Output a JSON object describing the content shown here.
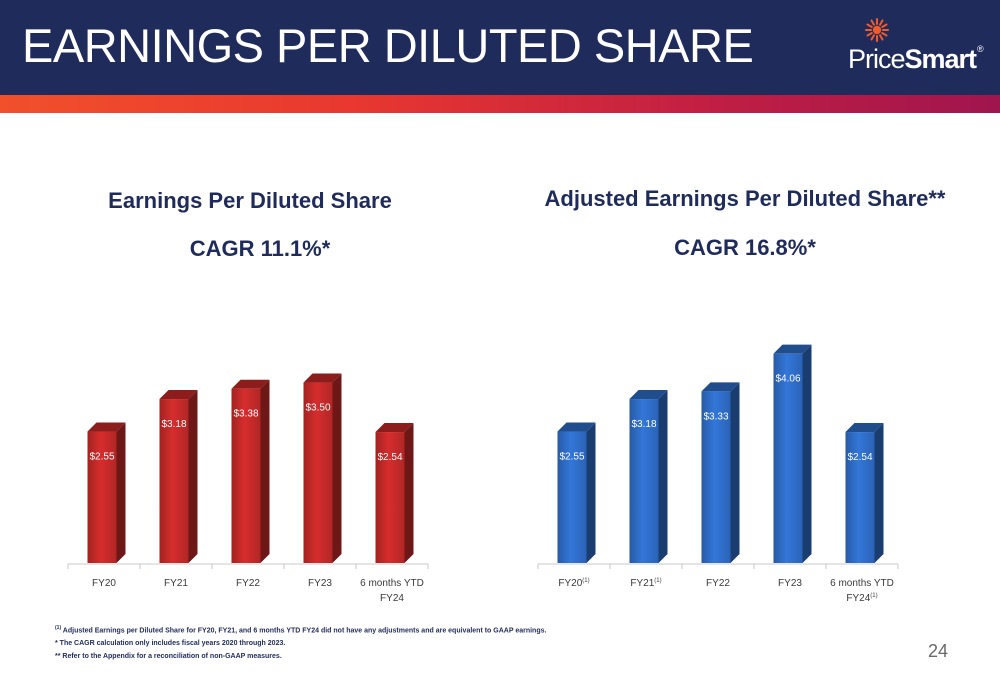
{
  "slide": {
    "title": "EARNINGS PER DILUTED SHARE",
    "page_number": "24"
  },
  "logo": {
    "text_regular": "Price",
    "text_bold": "Smart",
    "registered": "®",
    "colors": {
      "sunburst": "#f15a29",
      "text": "#ffffff"
    }
  },
  "colors": {
    "header_bg": "#1f2b5a",
    "accent_gradient": [
      "#f1502b",
      "#a0154e"
    ],
    "chart_title": "#1f2b5a",
    "red_bar": "#c62a2a",
    "blue_bar": "#2f6ec9"
  },
  "chart_data": [
    {
      "type": "bar",
      "title": "Earnings Per Diluted Share",
      "subtitle": "CAGR 11.1%*",
      "categories": [
        "FY20",
        "FY21",
        "FY22",
        "FY23",
        "6 months YTD FY24"
      ],
      "category_lines": [
        [
          "FY20"
        ],
        [
          "FY21"
        ],
        [
          "FY22"
        ],
        [
          "FY23"
        ],
        [
          "6 months YTD",
          "FY24"
        ]
      ],
      "category_superscripts": [
        "",
        "",
        "",
        "",
        ""
      ],
      "values": [
        2.55,
        3.18,
        3.38,
        3.5,
        2.54
      ],
      "data_labels": [
        "$2.55",
        "$3.18",
        "$3.38",
        "$3.50",
        "$2.54"
      ],
      "color": "#c62a2a",
      "ylim": [
        0,
        4.5
      ],
      "grid": false,
      "legend": "none"
    },
    {
      "type": "bar",
      "title": "Adjusted Earnings Per Diluted Share**",
      "subtitle": "CAGR 16.8%*",
      "categories": [
        "FY20(1)",
        "FY21(1)",
        "FY22",
        "FY23",
        "6 months YTD FY24(1)"
      ],
      "category_lines": [
        [
          "FY20"
        ],
        [
          "FY21"
        ],
        [
          "FY22"
        ],
        [
          "FY23"
        ],
        [
          "6 months YTD",
          "FY24"
        ]
      ],
      "category_superscripts": [
        "(1)",
        "(1)",
        "",
        "",
        "(1)"
      ],
      "values": [
        2.55,
        3.18,
        3.33,
        4.06,
        2.54
      ],
      "data_labels": [
        "$2.55",
        "$3.18",
        "$3.33",
        "$4.06",
        "$2.54"
      ],
      "color": "#2f6ec9",
      "ylim": [
        0,
        4.5
      ],
      "grid": false,
      "legend": "none"
    }
  ],
  "footnotes": {
    "note1_marker": "(1)",
    "note1_text": " Adjusted Earnings per Diluted Share for FY20, FY21, and 6 months YTD FY24 did not have any adjustments and are equivalent to GAAP earnings.",
    "note2": "* The CAGR calculation only includes fiscal years 2020 through 2023.",
    "note3": "** Refer to the Appendix for a reconciliation of non-GAAP measures."
  }
}
